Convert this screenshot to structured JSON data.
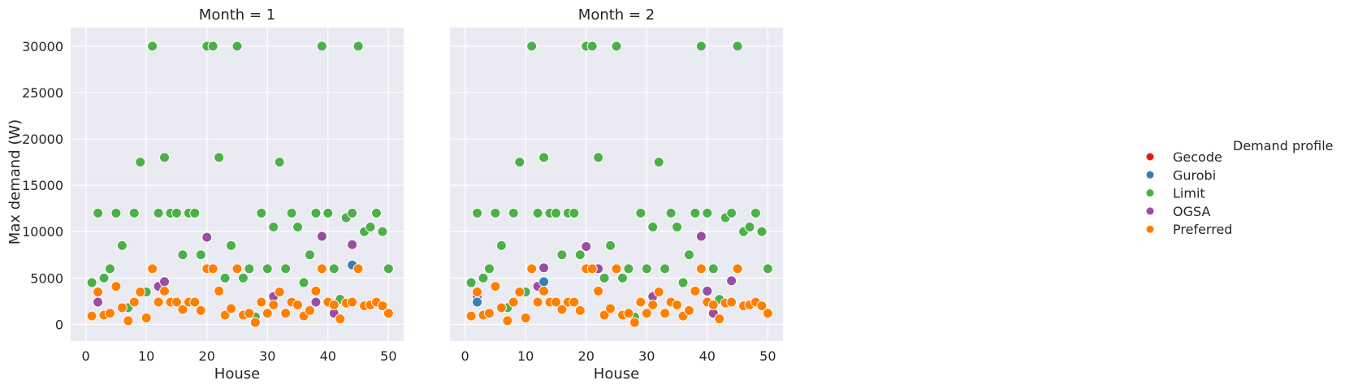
{
  "chart_data": {
    "type": "scatter",
    "ylabel": "Max demand (W)",
    "xlabel": "House",
    "ylim": [
      -1800,
      32000
    ],
    "xlim": [
      -2.5,
      52.5
    ],
    "x_ticks": [
      0,
      10,
      20,
      30,
      40,
      50
    ],
    "y_ticks": [
      0,
      5000,
      10000,
      15000,
      20000,
      25000,
      30000
    ],
    "grid": true,
    "legend": {
      "title": "Demand profile",
      "placement": "right",
      "entries": [
        {
          "name": "Gecode",
          "color": "#e41a1c"
        },
        {
          "name": "Gurobi",
          "color": "#377eb8"
        },
        {
          "name": "Limit",
          "color": "#4daf4a"
        },
        {
          "name": "OGSA",
          "color": "#984ea3"
        },
        {
          "name": "Preferred",
          "color": "#ff7f00"
        }
      ]
    },
    "panels": [
      {
        "title": "Month = 1",
        "series": [
          {
            "name": "Gecode",
            "x": [],
            "y": []
          },
          {
            "name": "Gurobi",
            "x": [
              44
            ],
            "y": [
              6400
            ]
          },
          {
            "name": "Limit",
            "x": [
              1,
              2,
              3,
              4,
              5,
              6,
              7,
              8,
              9,
              10,
              11,
              12,
              13,
              14,
              15,
              16,
              17,
              18,
              19,
              20,
              21,
              22,
              23,
              24,
              25,
              26,
              27,
              28,
              29,
              30,
              31,
              32,
              33,
              34,
              35,
              36,
              37,
              38,
              39,
              40,
              41,
              42,
              43,
              44,
              45,
              46,
              47,
              48,
              49,
              50
            ],
            "y": [
              4500,
              12000,
              5000,
              6000,
              12000,
              8500,
              1800,
              12000,
              17500,
              3500,
              30000,
              12000,
              18000,
              12000,
              12000,
              7500,
              12000,
              12000,
              7500,
              30000,
              30000,
              18000,
              5000,
              8500,
              30000,
              5000,
              6000,
              800,
              12000,
              6000,
              10500,
              17500,
              6000,
              12000,
              10500,
              4500,
              7500,
              12000,
              30000,
              12000,
              6000,
              2700,
              11500,
              12000,
              30000,
              10000,
              10500,
              12000,
              10000,
              6000
            ]
          },
          {
            "name": "OGSA",
            "x": [
              2,
              12,
              13,
              20,
              31,
              38,
              39,
              41,
              44
            ],
            "y": [
              2400,
              4100,
              4600,
              9400,
              3000,
              2400,
              9500,
              1200,
              8600
            ]
          },
          {
            "name": "Preferred",
            "x": [
              1,
              2,
              3,
              4,
              5,
              6,
              7,
              8,
              9,
              10,
              11,
              12,
              13,
              14,
              15,
              16,
              17,
              18,
              19,
              20,
              21,
              22,
              23,
              24,
              25,
              26,
              27,
              28,
              29,
              30,
              31,
              32,
              33,
              34,
              35,
              36,
              37,
              38,
              39,
              40,
              41,
              42,
              43,
              44,
              45,
              46,
              47,
              48,
              49,
              50
            ],
            "y": [
              900,
              3500,
              1000,
              1200,
              4100,
              1800,
              400,
              2400,
              3500,
              700,
              6000,
              2400,
              3600,
              2400,
              2400,
              1600,
              2400,
              2400,
              1500,
              6000,
              6000,
              3600,
              1000,
              1700,
              6000,
              1000,
              1200,
              200,
              2400,
              1200,
              2100,
              3500,
              1200,
              2400,
              2100,
              900,
              1500,
              3600,
              6000,
              2400,
              2100,
              600,
              2300,
              2400,
              6000,
              2000,
              2100,
              2400,
              2000,
              1200
            ]
          }
        ]
      },
      {
        "title": "Month = 2",
        "series": [
          {
            "name": "Gecode",
            "x": [],
            "y": []
          },
          {
            "name": "Gurobi",
            "x": [
              2,
              13
            ],
            "y": [
              2400,
              4600
            ]
          },
          {
            "name": "Limit",
            "x": [
              1,
              2,
              3,
              4,
              5,
              6,
              7,
              8,
              9,
              10,
              11,
              12,
              13,
              14,
              15,
              16,
              17,
              18,
              19,
              20,
              21,
              22,
              23,
              24,
              25,
              26,
              27,
              28,
              29,
              30,
              31,
              32,
              33,
              34,
              35,
              36,
              37,
              38,
              39,
              40,
              41,
              42,
              43,
              44,
              45,
              46,
              47,
              48,
              49,
              50
            ],
            "y": [
              4500,
              12000,
              5000,
              6000,
              12000,
              8500,
              1800,
              12000,
              17500,
              3500,
              30000,
              12000,
              18000,
              12000,
              12000,
              7500,
              12000,
              12000,
              7500,
              30000,
              30000,
              18000,
              5000,
              8500,
              30000,
              5000,
              6000,
              800,
              12000,
              6000,
              10500,
              17500,
              6000,
              12000,
              10500,
              4500,
              7500,
              12000,
              30000,
              12000,
              6000,
              2700,
              11500,
              12000,
              30000,
              10000,
              10500,
              12000,
              10000,
              6000
            ]
          },
          {
            "name": "OGSA",
            "x": [
              2,
              12,
              13,
              20,
              22,
              31,
              39,
              40,
              41,
              44
            ],
            "y": [
              3000,
              4100,
              6100,
              8400,
              6000,
              3000,
              9500,
              3600,
              1200,
              4700
            ]
          },
          {
            "name": "Preferred",
            "x": [
              1,
              2,
              3,
              4,
              5,
              6,
              7,
              8,
              9,
              10,
              11,
              12,
              13,
              14,
              15,
              16,
              17,
              18,
              19,
              20,
              21,
              22,
              23,
              24,
              25,
              26,
              27,
              28,
              29,
              30,
              31,
              32,
              33,
              34,
              35,
              36,
              37,
              38,
              39,
              40,
              41,
              42,
              43,
              44,
              45,
              46,
              47,
              48,
              49,
              50
            ],
            "y": [
              900,
              3500,
              1000,
              1200,
              4100,
              1800,
              400,
              2400,
              3500,
              700,
              6000,
              2400,
              3600,
              2400,
              2400,
              1600,
              2400,
              2400,
              1500,
              6000,
              6000,
              3600,
              1000,
              1700,
              6000,
              1000,
              1200,
              200,
              2400,
              1200,
              2100,
              3500,
              1200,
              2400,
              2100,
              900,
              1500,
              3600,
              6000,
              2400,
              2100,
              600,
              2300,
              2400,
              6000,
              2000,
              2100,
              2400,
              2000,
              1200
            ]
          }
        ]
      }
    ]
  }
}
